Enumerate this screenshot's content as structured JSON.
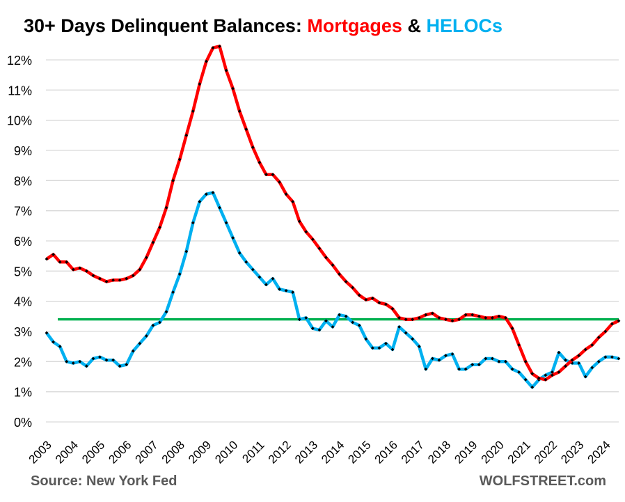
{
  "chart_data": {
    "type": "line",
    "title": {
      "prefix": "30+ Days Delinquent Balances: ",
      "series1": "Mortgages",
      "joiner": " & ",
      "series2": "HELOCs"
    },
    "xlabel": "",
    "ylabel": "",
    "ylim": [
      0,
      12
    ],
    "yticks": [
      "0%",
      "1%",
      "2%",
      "3%",
      "4%",
      "5%",
      "6%",
      "7%",
      "8%",
      "9%",
      "10%",
      "11%",
      "12%"
    ],
    "xticks": [
      "2003",
      "2004",
      "2005",
      "2006",
      "2007",
      "2008",
      "2009",
      "2010",
      "2011",
      "2012",
      "2013",
      "2014",
      "2015",
      "2016",
      "2017",
      "2018",
      "2019",
      "2020",
      "2021",
      "2022",
      "2023",
      "2024"
    ],
    "x_frequency": "quarterly, starting 2003 Q1",
    "grid": true,
    "series": [
      {
        "name": "Mortgages",
        "color": "#ff0000",
        "values": [
          5.4,
          5.55,
          5.3,
          5.3,
          5.05,
          5.1,
          5.0,
          4.85,
          4.75,
          4.65,
          4.7,
          4.7,
          4.75,
          4.85,
          5.05,
          5.45,
          5.95,
          6.45,
          7.1,
          8.0,
          8.7,
          9.5,
          10.3,
          11.2,
          11.95,
          12.4,
          12.45,
          11.65,
          11.05,
          10.3,
          9.7,
          9.1,
          8.6,
          8.2,
          8.2,
          7.95,
          7.55,
          7.3,
          6.65,
          6.3,
          6.05,
          5.75,
          5.45,
          5.2,
          4.9,
          4.65,
          4.45,
          4.2,
          4.05,
          4.1,
          3.95,
          3.9,
          3.75,
          3.45,
          3.4,
          3.4,
          3.45,
          3.55,
          3.6,
          3.45,
          3.4,
          3.35,
          3.4,
          3.55,
          3.55,
          3.5,
          3.45,
          3.45,
          3.5,
          3.45,
          3.1,
          2.55,
          2.0,
          1.6,
          1.45,
          1.4,
          1.55,
          1.65,
          1.85,
          2.05,
          2.2,
          2.4,
          2.55,
          2.8,
          3.0,
          3.25,
          3.35
        ]
      },
      {
        "name": "HELOCs",
        "color": "#00b0f0",
        "values": [
          2.95,
          2.65,
          2.5,
          2.0,
          1.95,
          2.0,
          1.85,
          2.1,
          2.15,
          2.05,
          2.05,
          1.85,
          1.9,
          2.35,
          2.6,
          2.85,
          3.2,
          3.3,
          3.65,
          4.3,
          4.9,
          5.65,
          6.6,
          7.3,
          7.55,
          7.6,
          7.1,
          6.6,
          6.1,
          5.6,
          5.3,
          5.05,
          4.8,
          4.55,
          4.75,
          4.4,
          4.35,
          4.3,
          3.4,
          3.45,
          3.1,
          3.05,
          3.35,
          3.15,
          3.55,
          3.5,
          3.3,
          3.2,
          2.75,
          2.45,
          2.45,
          2.6,
          2.4,
          3.15,
          2.95,
          2.75,
          2.5,
          1.75,
          2.1,
          2.05,
          2.2,
          2.25,
          1.75,
          1.75,
          1.9,
          1.9,
          2.1,
          2.1,
          2.0,
          2.0,
          1.75,
          1.65,
          1.4,
          1.15,
          1.4,
          1.55,
          1.65,
          2.3,
          2.05,
          1.95,
          1.95,
          1.5,
          1.8,
          2.0,
          2.15,
          2.15,
          2.1
        ]
      }
    ],
    "reference_line": {
      "value": 3.4,
      "color": "#00b050"
    }
  },
  "footer": {
    "source": "Source: New York Fed",
    "brand": "WOLFSTREET.com"
  }
}
